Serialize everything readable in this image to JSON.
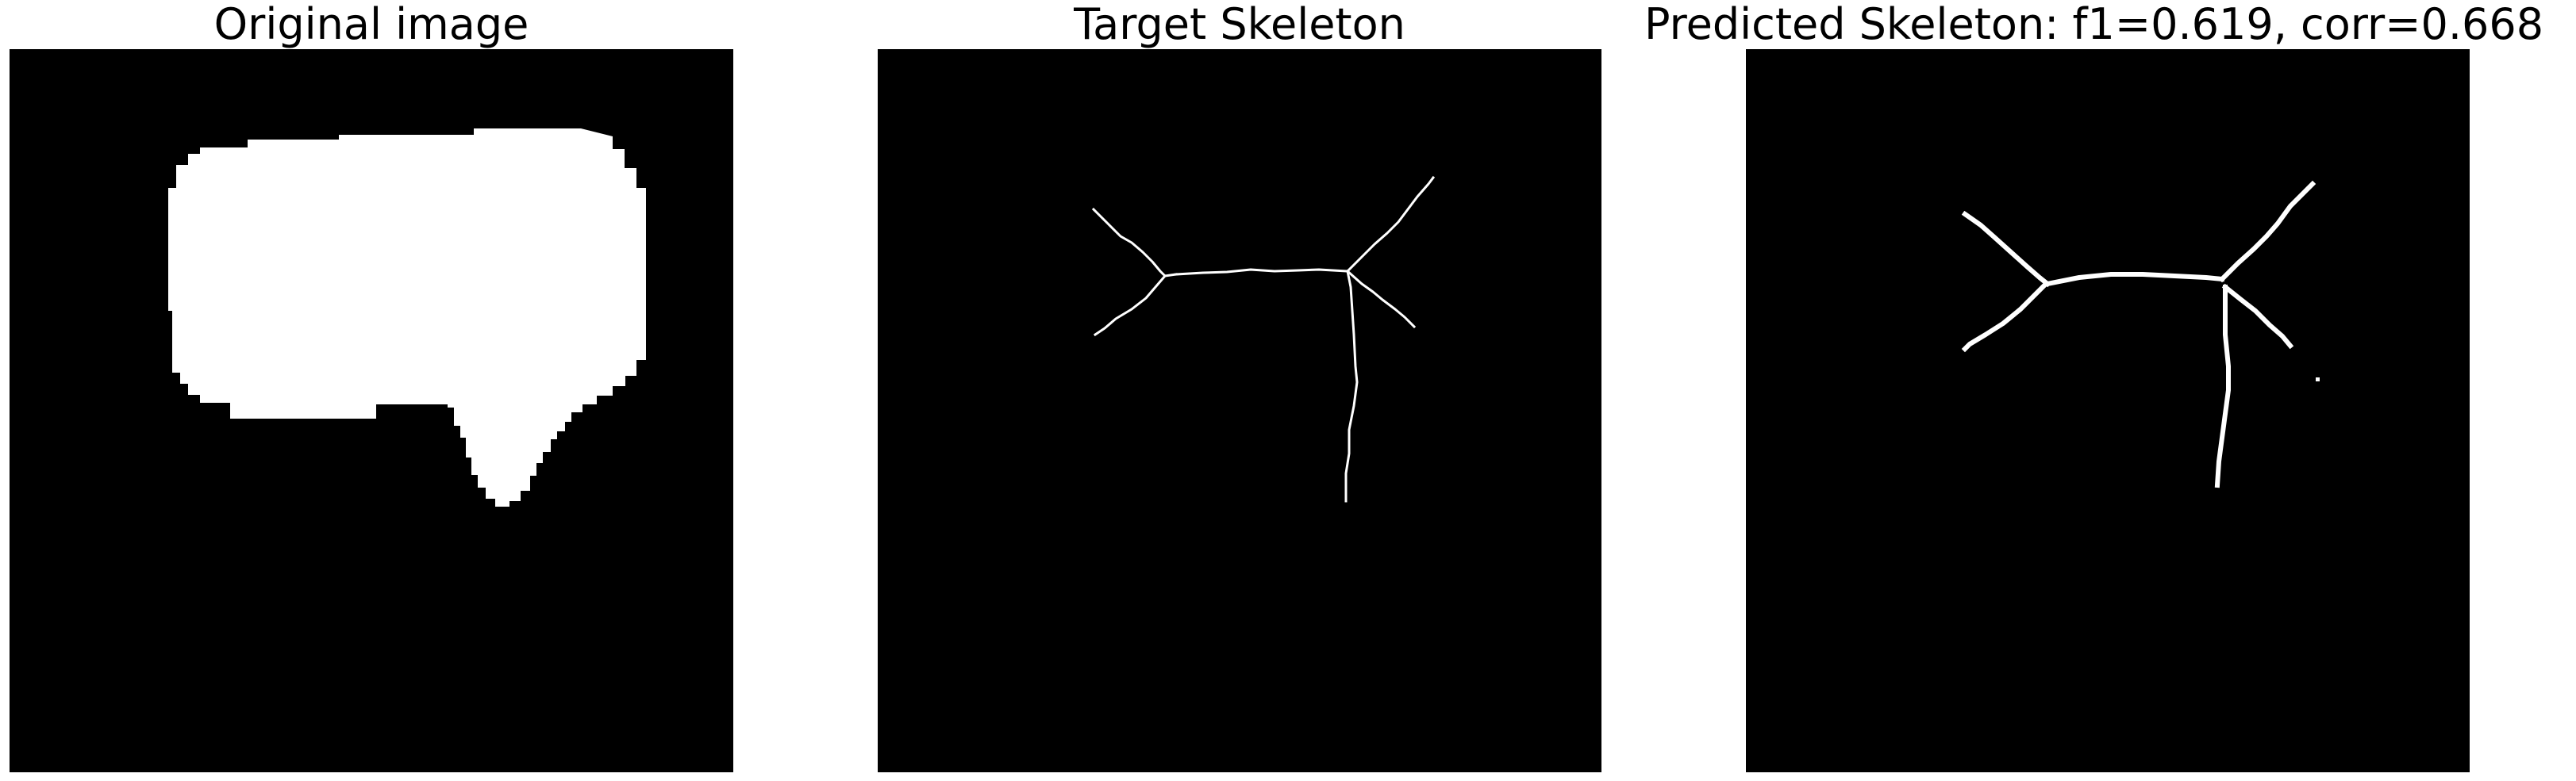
{
  "panels": [
    {
      "title": "Original image"
    },
    {
      "title": "Target Skeleton"
    },
    {
      "title": "Predicted Skeleton: f1=0.619, corr=0.668"
    }
  ],
  "colors": {
    "background": "#ffffff",
    "image_background": "#000000",
    "foreground": "#ffffff"
  }
}
